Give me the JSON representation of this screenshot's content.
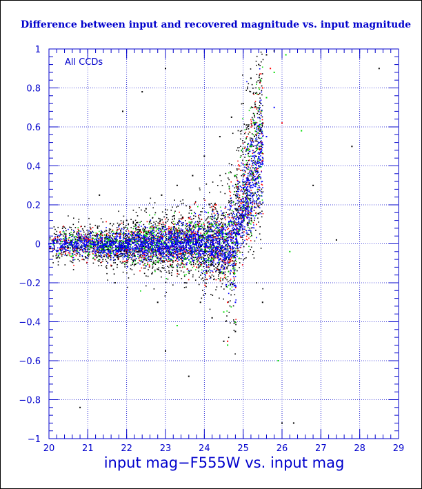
{
  "chart_data": {
    "type": "scatter",
    "title": "Difference between input and recovered magnitude vs. input magnitude",
    "xlabel": "input mag−F555W vs. input mag",
    "ylabel": "",
    "annotation": "All CCDs",
    "xlim": [
      20,
      29
    ],
    "ylim": [
      -1,
      1
    ],
    "x_ticks": [
      20,
      21,
      22,
      23,
      24,
      25,
      26,
      27,
      28,
      29
    ],
    "y_ticks": [
      -1,
      -0.8,
      -0.6,
      -0.4,
      -0.2,
      0,
      0.2,
      0.4,
      0.6,
      0.8,
      1
    ],
    "x_tick_labels": [
      "20",
      "21",
      "22",
      "23",
      "24",
      "25",
      "26",
      "27",
      "28",
      "29"
    ],
    "y_tick_labels": [
      "−1",
      "−0.8",
      "−0.6",
      "−0.4",
      "−0.2",
      "0",
      "0.2",
      "0.4",
      "0.6",
      "0.8",
      "1"
    ],
    "grid": true,
    "grid_style": "dotted",
    "axis_color": "#0000cc",
    "series": [
      {
        "color": "#000000",
        "points": [
          [
            20.2,
            0.01
          ],
          [
            20.5,
            -0.02
          ],
          [
            20.8,
            0.03
          ],
          [
            21.0,
            -0.01
          ],
          [
            21.2,
            0.04
          ],
          [
            21.5,
            -0.03
          ],
          [
            21.8,
            0.05
          ],
          [
            22.0,
            0.12
          ],
          [
            22.2,
            -0.06
          ],
          [
            22.5,
            0.18
          ],
          [
            22.7,
            -0.1
          ],
          [
            22.9,
            0.25
          ],
          [
            23.1,
            -0.15
          ],
          [
            23.3,
            0.3
          ],
          [
            23.5,
            -0.2
          ],
          [
            23.7,
            0.35
          ],
          [
            23.9,
            -0.3
          ],
          [
            24.0,
            0.45
          ],
          [
            24.2,
            -0.38
          ],
          [
            24.4,
            0.55
          ],
          [
            24.5,
            -0.5
          ],
          [
            24.7,
            0.65
          ],
          [
            24.8,
            -0.45
          ],
          [
            25.0,
            0.72
          ],
          [
            25.2,
            0.85
          ],
          [
            25.4,
            0.92
          ],
          [
            25.6,
            0.97
          ],
          [
            25.8,
            0.99
          ],
          [
            20.8,
            -0.84
          ],
          [
            23.0,
            -0.55
          ],
          [
            23.6,
            -0.68
          ],
          [
            27.4,
            0.02
          ],
          [
            27.8,
            0.5
          ],
          [
            28.5,
            0.9
          ],
          [
            23.0,
            0.9
          ],
          [
            22.4,
            0.78
          ],
          [
            21.9,
            0.68
          ],
          [
            26.3,
            -0.92
          ],
          [
            22.8,
            -0.3
          ],
          [
            26.0,
            -0.92
          ],
          [
            21.3,
            0.25
          ],
          [
            21.7,
            -0.2
          ],
          [
            25.5,
            -0.3
          ],
          [
            26.8,
            0.3
          ]
        ]
      },
      {
        "color": "#ff0000",
        "points": [
          [
            21.0,
            0.02
          ],
          [
            22.0,
            -0.03
          ],
          [
            23.0,
            0.06
          ],
          [
            23.8,
            -0.12
          ],
          [
            24.3,
            0.2
          ],
          [
            24.6,
            -0.3
          ],
          [
            24.9,
            0.4
          ],
          [
            25.1,
            0.55
          ],
          [
            25.3,
            0.7
          ],
          [
            25.5,
            0.8
          ],
          [
            25.7,
            0.9
          ],
          [
            24.6,
            0.15
          ],
          [
            25.0,
            0.3
          ],
          [
            26.0,
            0.62
          ],
          [
            24.6,
            -0.5
          ]
        ]
      },
      {
        "color": "#00dd00",
        "points": [
          [
            21.5,
            -0.02
          ],
          [
            22.5,
            0.04
          ],
          [
            23.5,
            -0.08
          ],
          [
            24.1,
            0.16
          ],
          [
            24.5,
            -0.35
          ],
          [
            24.8,
            0.35
          ],
          [
            25.2,
            0.5
          ],
          [
            25.4,
            0.6
          ],
          [
            25.6,
            0.75
          ],
          [
            25.8,
            0.88
          ],
          [
            26.1,
            0.97
          ],
          [
            26.5,
            0.58
          ],
          [
            26.2,
            -0.04
          ],
          [
            25.9,
            -0.6
          ],
          [
            23.3,
            -0.42
          ],
          [
            24.6,
            -0.52
          ]
        ]
      },
      {
        "color": "#0000ff",
        "points": [
          [
            20.0,
            0.0
          ],
          [
            20.6,
            0.01
          ],
          [
            21.4,
            -0.01
          ],
          [
            22.1,
            0.02
          ],
          [
            22.8,
            -0.03
          ],
          [
            23.4,
            0.05
          ],
          [
            24.0,
            -0.08
          ],
          [
            24.4,
            0.1
          ],
          [
            24.7,
            -0.2
          ],
          [
            25.0,
            0.2
          ],
          [
            25.2,
            0.3
          ],
          [
            25.4,
            0.4
          ],
          [
            25.6,
            0.55
          ],
          [
            25.8,
            0.7
          ],
          [
            24.8,
            -0.3
          ]
        ]
      }
    ]
  }
}
